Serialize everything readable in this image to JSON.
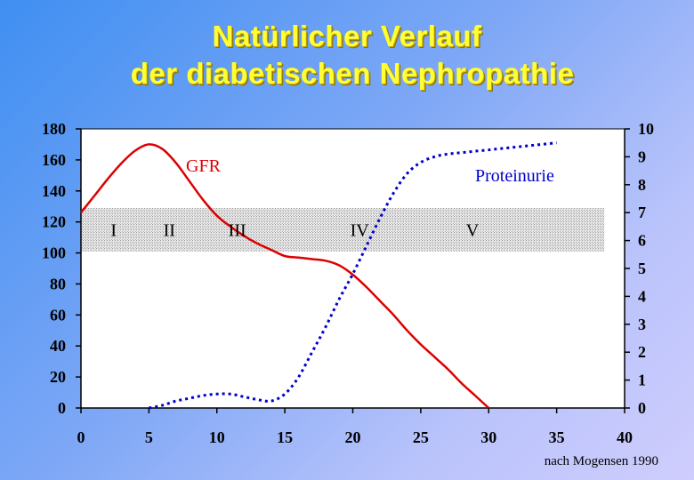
{
  "title_line1": "Natürlicher Verlauf",
  "title_line2": "der diabetischen Nephropathie",
  "source_note": "nach Mogensen 1990",
  "colors": {
    "gfr": "#dd0000",
    "proteinurie": "#0000cc",
    "title": "#ffff33",
    "band": "#c8c8c8"
  },
  "chart_data": {
    "type": "line",
    "xlim": [
      0,
      40
    ],
    "x_ticks": [
      0,
      5,
      10,
      15,
      20,
      25,
      30,
      35,
      40
    ],
    "ylim_left": [
      0,
      180
    ],
    "y_ticks_left": [
      0,
      20,
      40,
      60,
      80,
      100,
      120,
      140,
      160,
      180
    ],
    "ylim_right": [
      0,
      10
    ],
    "y_ticks_right": [
      0,
      1,
      2,
      3,
      4,
      5,
      6,
      7,
      8,
      9,
      10
    ],
    "grid": false,
    "series": [
      {
        "name": "GFR",
        "axis": "left",
        "style": "solid",
        "x": [
          0,
          1,
          2,
          3,
          4,
          5,
          6,
          7,
          8,
          9,
          10,
          11,
          12,
          13,
          14,
          15,
          16,
          17,
          18,
          19,
          20,
          21,
          22,
          23,
          24,
          25,
          26,
          27,
          28,
          29,
          30
        ],
        "y": [
          126,
          137,
          148,
          158,
          166,
          170,
          167,
          158,
          146,
          134,
          124,
          117,
          111,
          106,
          102,
          98,
          97,
          96,
          95,
          92,
          86,
          78,
          69,
          60,
          50,
          41,
          33,
          25,
          16,
          8,
          0
        ]
      },
      {
        "name": "Proteinurie",
        "axis": "right",
        "style": "dotted",
        "x": [
          5,
          6,
          7,
          8,
          9,
          10,
          11,
          12,
          13,
          14,
          15,
          16,
          17,
          18,
          19,
          20,
          21,
          22,
          23,
          24,
          25,
          26,
          27,
          28,
          29,
          30,
          31,
          32,
          33,
          34,
          35
        ],
        "y": [
          0,
          0.1,
          0.25,
          0.35,
          0.45,
          0.5,
          0.5,
          0.4,
          0.3,
          0.25,
          0.5,
          1.1,
          2.0,
          2.9,
          3.9,
          4.8,
          5.8,
          6.8,
          7.7,
          8.4,
          8.8,
          9.0,
          9.1,
          9.15,
          9.2,
          9.25,
          9.3,
          9.35,
          9.4,
          9.45,
          9.5
        ]
      }
    ],
    "band": {
      "y_from": 101,
      "y_to": 129,
      "x_from": 0,
      "x_to": 38.5
    },
    "stage_labels": [
      {
        "text": "I",
        "x": 2.4
      },
      {
        "text": "II",
        "x": 6.5
      },
      {
        "text": "III",
        "x": 11.5
      },
      {
        "text": "IV",
        "x": 20.5
      },
      {
        "text": "V",
        "x": 28.8
      }
    ],
    "series_labels": [
      {
        "text": "GFR",
        "series": 0
      },
      {
        "text": "Proteinurie",
        "series": 1
      }
    ]
  }
}
